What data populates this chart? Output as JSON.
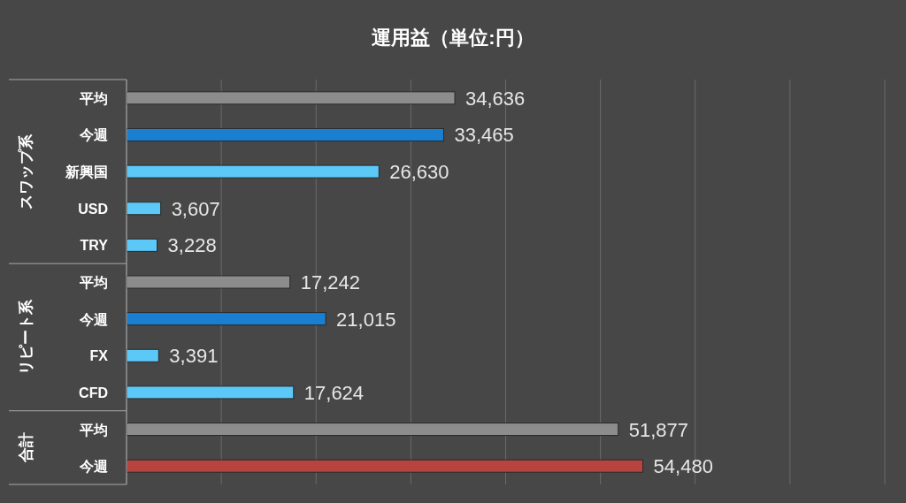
{
  "chart_data": {
    "type": "bar",
    "orientation": "horizontal",
    "title": "運用益（単位:円）",
    "categories": [
      "平均",
      "今週",
      "新興国",
      "USD",
      "TRY",
      "平均",
      "今週",
      "FX",
      "CFD",
      "平均",
      "今週"
    ],
    "values": [
      34636,
      33465,
      26630,
      3607,
      3228,
      17242,
      21015,
      3391,
      17624,
      51877,
      54480
    ],
    "colors": [
      "#8c8c8c",
      "#1b7fd1",
      "#5cc8f7",
      "#5cc8f7",
      "#5cc8f7",
      "#8c8c8c",
      "#1b7fd1",
      "#5cc8f7",
      "#5cc8f7",
      "#8c8c8c",
      "#b84440"
    ],
    "annotations": [
      "スワップ系",
      "リピート系",
      "合計"
    ],
    "value_labels": [
      "34,636",
      "33,465",
      "26,630",
      "3,607",
      "3,228",
      "17,242",
      "21,015",
      "3,391",
      "17,624",
      "51,877",
      "54,480"
    ],
    "grid": "x",
    "tick_labels": "y"
  }
}
